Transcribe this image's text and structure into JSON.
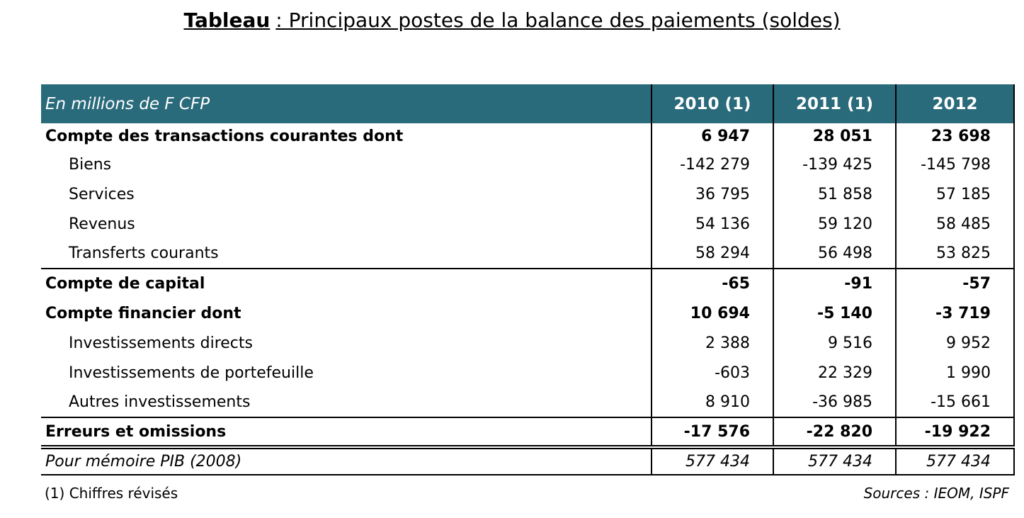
{
  "title": {
    "bold": "Tableau",
    "text": ": Principaux postes de la balance des paiements (soldes)"
  },
  "table": {
    "header": [
      "En millions de F CFP",
      "2010 (1)",
      "2011 (1)",
      "2012"
    ],
    "rows": [
      [
        "Compte des transactions courantes dont",
        "6 947",
        "28 051",
        "23 698"
      ],
      [
        "Biens",
        "-142 279",
        "-139 425",
        "-145 798"
      ],
      [
        "Services",
        "36 795",
        "51 858",
        "57 185"
      ],
      [
        "Revenus",
        "54 136",
        "59 120",
        "58 485"
      ],
      [
        "Transferts courants",
        "58 294",
        "56 498",
        "53 825"
      ],
      [
        "Compte de capital",
        "-65",
        "-91",
        "-57"
      ],
      [
        "Compte financier dont",
        "10 694",
        "-5 140",
        "-3 719"
      ],
      [
        "Investissements directs",
        "2 388",
        "9 516",
        "9 952"
      ],
      [
        "Investissements de portefeuille",
        "-603",
        "22 329",
        "1 990"
      ],
      [
        "Autres investissements",
        "8 910",
        "-36 985",
        "-15 661"
      ],
      [
        "Erreurs et omissions",
        "-17 576",
        "-22 820",
        "-19 922"
      ],
      [
        "Pour mémoire PIB (2008)",
        "577 434",
        "577 434",
        "577 434"
      ]
    ]
  },
  "footnote": "(1) Chiffres révisés",
  "source": "Sources : IEOM, ISPF"
}
